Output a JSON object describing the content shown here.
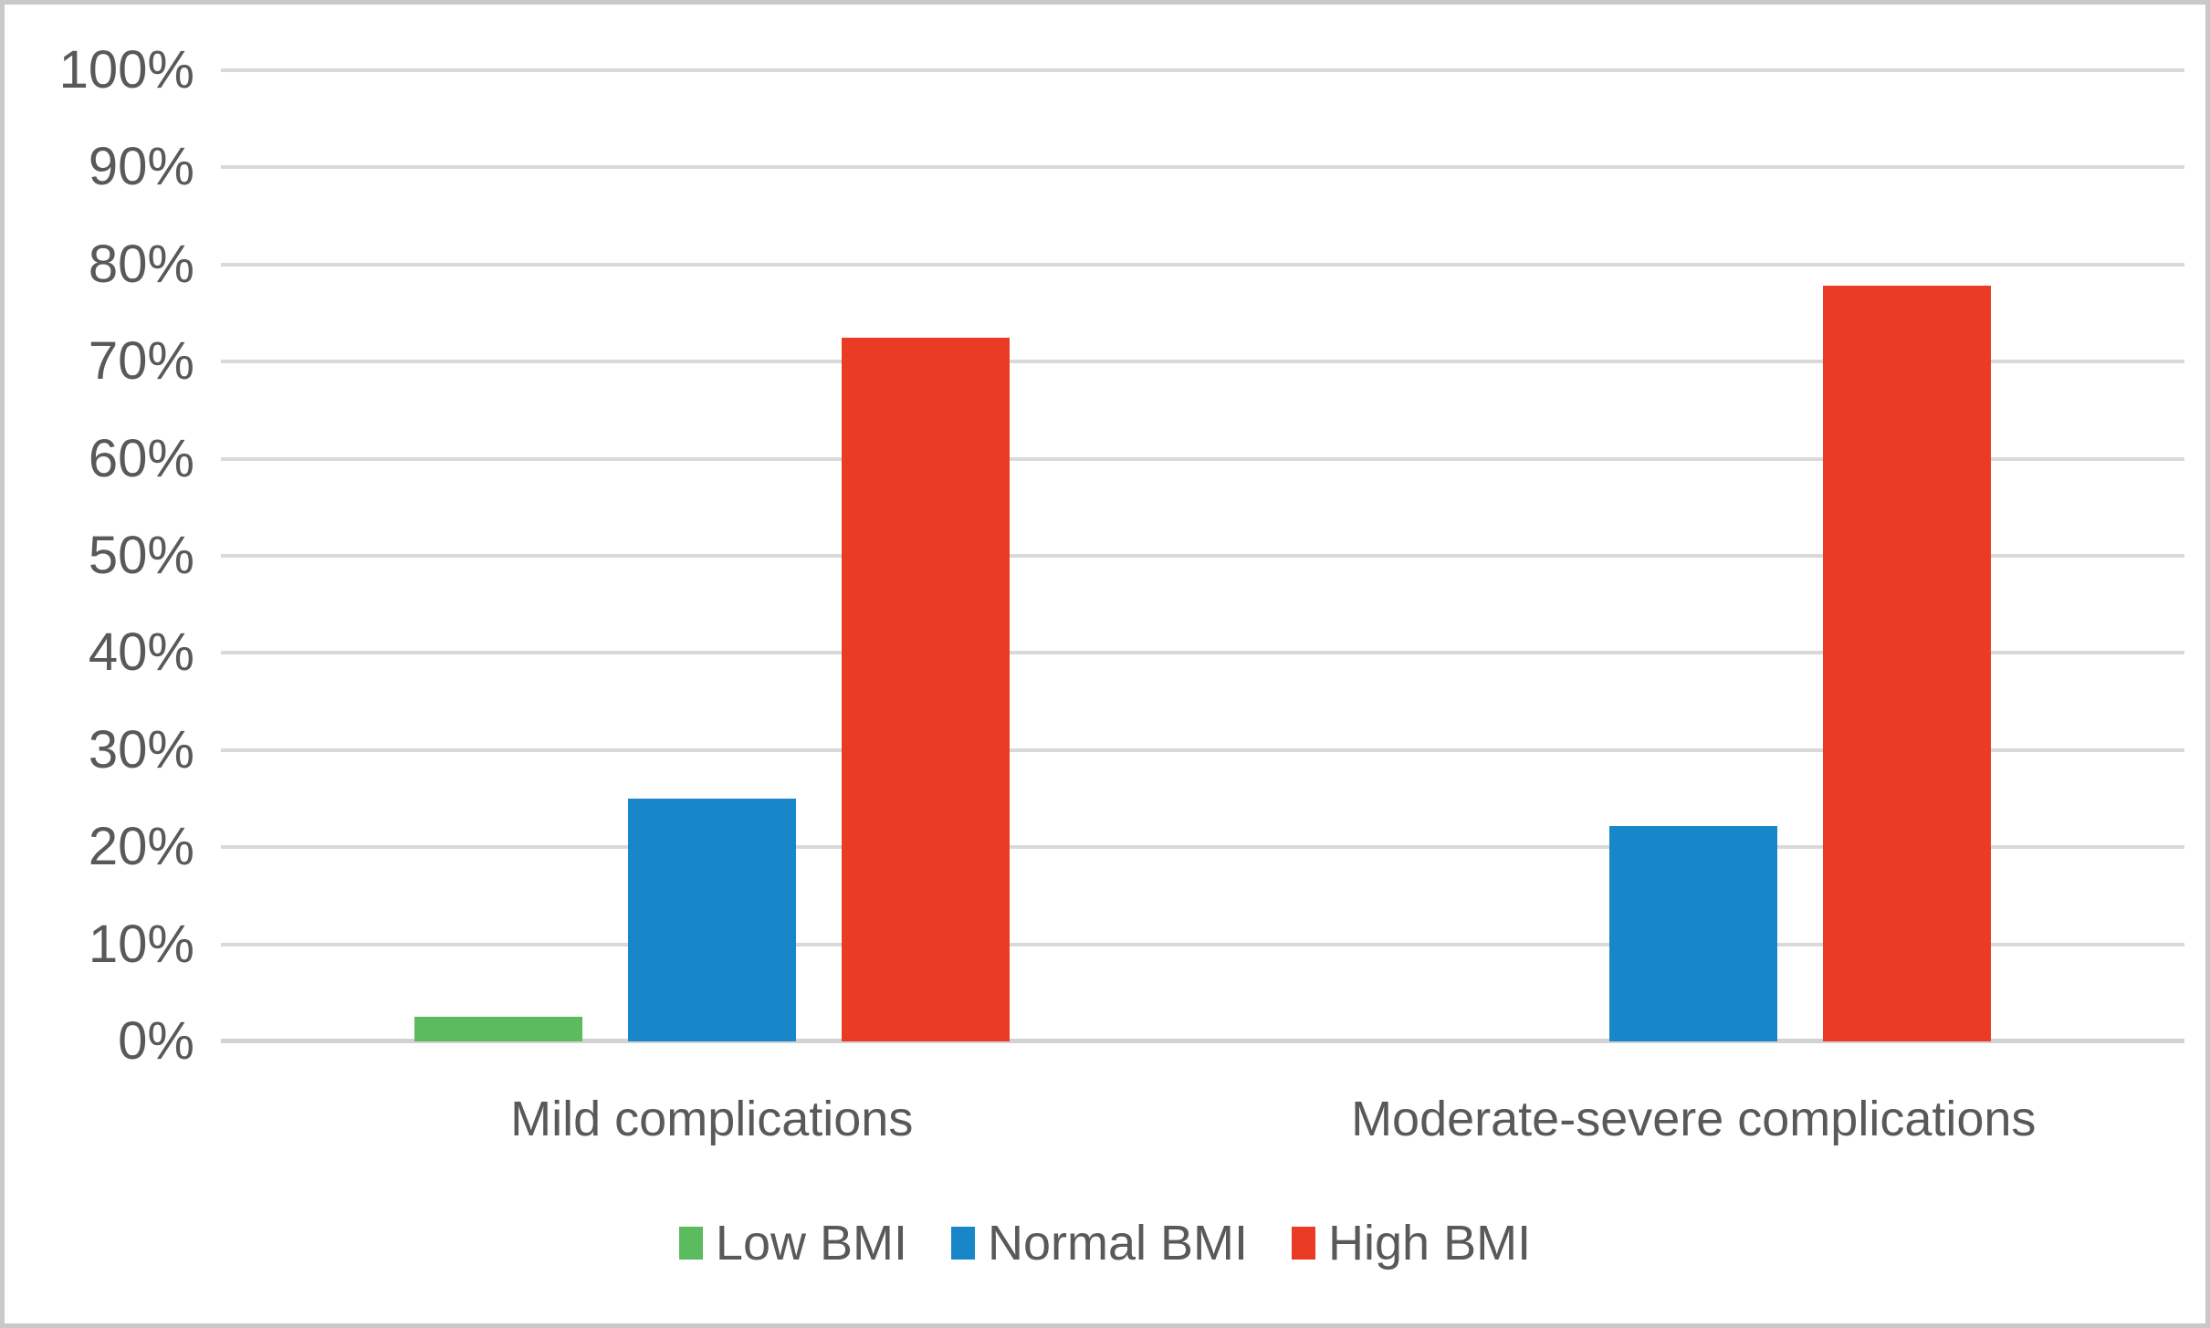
{
  "chart_data": {
    "type": "bar",
    "title": "",
    "categories": [
      "Mild complications",
      "Moderate-severe complications"
    ],
    "series": [
      {
        "name": "Low BMI",
        "color": "#5CBB5F",
        "values": [
          2.5,
          0
        ]
      },
      {
        "name": "Normal BMI",
        "color": "#1787C9",
        "values": [
          25,
          22.2
        ]
      },
      {
        "name": "High BMI",
        "color": "#EA3C24",
        "values": [
          72.5,
          77.8
        ]
      }
    ],
    "ylim": [
      0,
      100
    ],
    "y_tick_step": 10,
    "y_tick_labels": [
      "0%",
      "10%",
      "20%",
      "30%",
      "40%",
      "50%",
      "60%",
      "70%",
      "80%",
      "90%",
      "100%"
    ],
    "grid": "horizontal",
    "legend_position": "bottom",
    "styles": {
      "text_color": "#595959",
      "gridline_color": "#D9D9D9",
      "axis_line_color": "#D2D2D2",
      "frame_border_color": "#C9C9C9",
      "background": "#FFFFFF"
    }
  }
}
